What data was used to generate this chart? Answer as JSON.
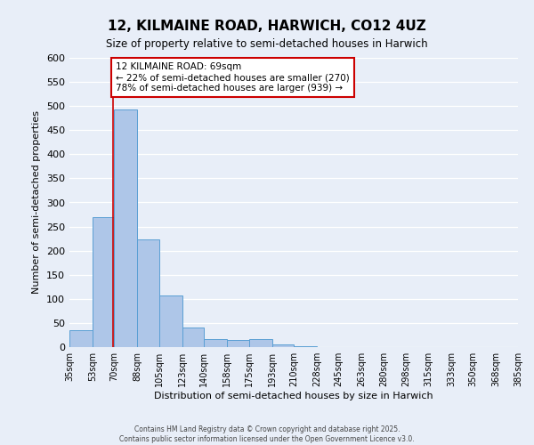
{
  "title": "12, KILMAINE ROAD, HARWICH, CO12 4UZ",
  "subtitle": "Size of property relative to semi-detached houses in Harwich",
  "xlabel": "Distribution of semi-detached houses by size in Harwich",
  "ylabel": "Number of semi-detached properties",
  "bar_edges": [
    35,
    53,
    70,
    88,
    105,
    123,
    140,
    158,
    175,
    193,
    210,
    228,
    245,
    263,
    280,
    298,
    315,
    333,
    350,
    368,
    385
  ],
  "bar_heights": [
    35,
    270,
    493,
    223,
    108,
    40,
    17,
    14,
    17,
    5,
    1,
    0,
    0,
    0,
    0,
    0,
    0,
    0,
    0,
    0
  ],
  "bar_color": "#aec6e8",
  "bar_edge_color": "#5a9fd4",
  "property_line_x": 69,
  "annotation_title": "12 KILMAINE ROAD: 69sqm",
  "annotation_line1": "← 22% of semi-detached houses are smaller (270)",
  "annotation_line2": "78% of semi-detached houses are larger (939) →",
  "annotation_box_color": "#ffffff",
  "annotation_box_edge": "#cc0000",
  "property_line_color": "#cc0000",
  "tick_labels": [
    "35sqm",
    "53sqm",
    "70sqm",
    "88sqm",
    "105sqm",
    "123sqm",
    "140sqm",
    "158sqm",
    "175sqm",
    "193sqm",
    "210sqm",
    "228sqm",
    "245sqm",
    "263sqm",
    "280sqm",
    "298sqm",
    "315sqm",
    "333sqm",
    "350sqm",
    "368sqm",
    "385sqm"
  ],
  "ylim": [
    0,
    600
  ],
  "yticks": [
    0,
    50,
    100,
    150,
    200,
    250,
    300,
    350,
    400,
    450,
    500,
    550,
    600
  ],
  "bg_color": "#e8eef8",
  "grid_color": "#ffffff",
  "footer1": "Contains HM Land Registry data © Crown copyright and database right 2025.",
  "footer2": "Contains public sector information licensed under the Open Government Licence v3.0."
}
